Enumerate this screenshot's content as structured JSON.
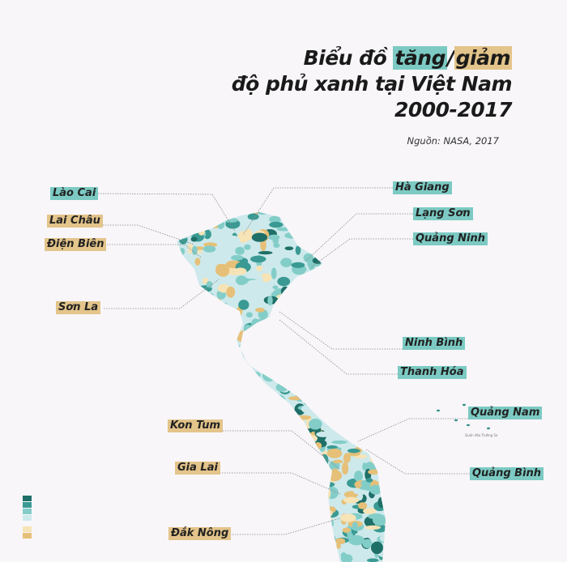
{
  "title": {
    "prefix": "Biểu đồ ",
    "increase": "tăng",
    "sep": "/",
    "decrease": "giảm",
    "line2": "độ phủ xanh tại Việt Nam",
    "line3": "2000-2017"
  },
  "source": "Nguồn: NASA, 2017",
  "islands_label": "Quần đảo Trường Sa",
  "colors": {
    "increase_highlight": "#7ccac3",
    "decrease_highlight": "#e3c48a"
  },
  "legend": {
    "swatches": [
      "#1e6f68",
      "#3a9a93",
      "#83cdc8",
      "#cde9ec",
      "#f6e3b6",
      "#e6c078"
    ]
  },
  "labels": [
    {
      "name": "Lào Cai",
      "trend": "up"
    },
    {
      "name": "Lai Châu",
      "trend": "down"
    },
    {
      "name": "Điện Biên",
      "trend": "down"
    },
    {
      "name": "Sơn La",
      "trend": "down"
    },
    {
      "name": "Hà Giang",
      "trend": "up"
    },
    {
      "name": "Lạng Sơn",
      "trend": "up"
    },
    {
      "name": "Quảng Ninh",
      "trend": "up"
    },
    {
      "name": "Ninh Bình",
      "trend": "up"
    },
    {
      "name": "Thanh Hóa",
      "trend": "up"
    },
    {
      "name": "Quảng Nam",
      "trend": "up"
    },
    {
      "name": "Quảng Bình",
      "trend": "up"
    },
    {
      "name": "Kon Tum",
      "trend": "down"
    },
    {
      "name": "Gia Lai",
      "trend": "down"
    },
    {
      "name": "Đắk Nông",
      "trend": "down"
    }
  ]
}
